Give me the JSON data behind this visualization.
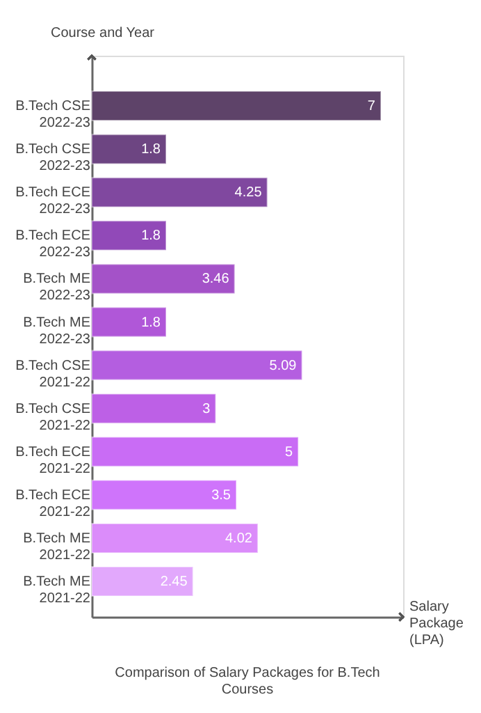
{
  "chart_data": {
    "type": "bar",
    "orientation": "horizontal",
    "title": "Comparison of Salary Packages for B.Tech Courses",
    "xlabel": "Salary Package (LPA)",
    "ylabel": "Course and Year",
    "categories": [
      "B.Tech CSE 2022-23",
      "B.Tech CSE 2022-23",
      "B.Tech ECE 2022-23",
      "B.Tech ECE 2022-23",
      "B.Tech ME 2022-23",
      "B.Tech ME 2022-23",
      "B.Tech CSE 2021-22",
      "B.Tech CSE 2021-22",
      "B.Tech ECE 2021-22",
      "B.Tech ECE 2021-22",
      "B.Tech ME 2021-22",
      "B.Tech ME 2021-22"
    ],
    "values": [
      7,
      1.8,
      4.25,
      1.8,
      3.46,
      1.8,
      5.09,
      3,
      5,
      3.5,
      4.02,
      2.45
    ],
    "colors": [
      "#5e4369",
      "#6d4582",
      "#80489f",
      "#9149b8",
      "#a452c8",
      "#b057d8",
      "#b45ee0",
      "#bd60e6",
      "#c96cf5",
      "#cf74fb",
      "#db8cfa",
      "#e2a8fc"
    ],
    "data_labels": true,
    "tick_labels": "y"
  }
}
